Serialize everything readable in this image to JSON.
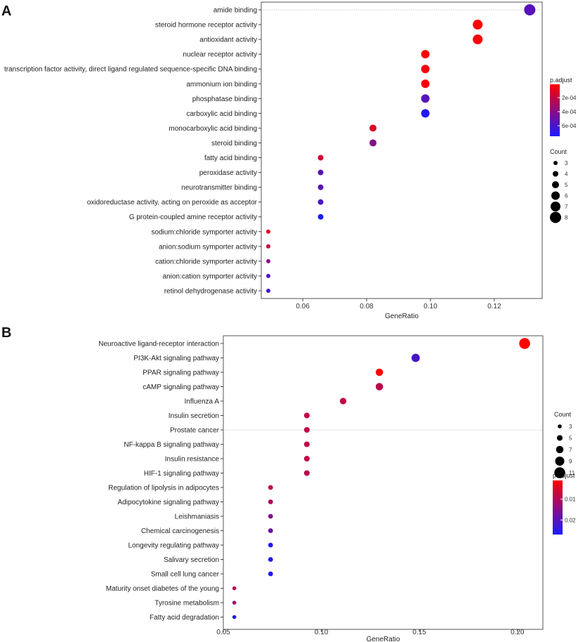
{
  "chart_data": [
    {
      "type": "scatter",
      "panel_label": "A",
      "xlabel": "GeneRatio",
      "xlim": [
        0.047,
        0.135
      ],
      "x_ticks": [
        0.06,
        0.08,
        0.1,
        0.12
      ],
      "x_tick_labels": [
        "0.06",
        "0.08",
        "0.10",
        "0.12"
      ],
      "categories": [
        "amide binding",
        "steroid hormone receptor activity",
        "antioxidant activity",
        "nuclear receptor activity",
        "transcription factor activity, direct ligand regulated sequence-specific DNA binding",
        "ammonium ion binding",
        "phosphatase binding",
        "carboxylic acid binding",
        "monocarboxylic acid binding",
        "steroid binding",
        "fatty acid binding",
        "peroxidase activity",
        "neurotransmitter binding",
        "oxidoreductase activity, acting on peroxide as acceptor",
        "G protein-coupled amine receptor activity",
        "sodium:chloride symporter activity",
        "anion:sodium symporter activity",
        "cation:chloride symporter activity",
        "anion:cation symporter activity",
        "retinol dehydrogenase activity"
      ],
      "points": [
        {
          "x": 0.1311,
          "count": 8,
          "p_adjust": 0.00055
        },
        {
          "x": 0.1148,
          "count": 7,
          "p_adjust": 2e-05
        },
        {
          "x": 0.1148,
          "count": 7,
          "p_adjust": 3e-05
        },
        {
          "x": 0.0984,
          "count": 6,
          "p_adjust": 3e-05
        },
        {
          "x": 0.0984,
          "count": 6,
          "p_adjust": 4e-05
        },
        {
          "x": 0.0984,
          "count": 6,
          "p_adjust": 4e-05
        },
        {
          "x": 0.0984,
          "count": 6,
          "p_adjust": 0.00055
        },
        {
          "x": 0.0984,
          "count": 6,
          "p_adjust": 0.00072
        },
        {
          "x": 0.082,
          "count": 5,
          "p_adjust": 0.00012
        },
        {
          "x": 0.082,
          "count": 5,
          "p_adjust": 0.0004
        },
        {
          "x": 0.0656,
          "count": 4,
          "p_adjust": 0.00015
        },
        {
          "x": 0.0656,
          "count": 4,
          "p_adjust": 0.00055
        },
        {
          "x": 0.0656,
          "count": 4,
          "p_adjust": 0.00055
        },
        {
          "x": 0.0656,
          "count": 4,
          "p_adjust": 0.0006
        },
        {
          "x": 0.0656,
          "count": 4,
          "p_adjust": 0.00075
        },
        {
          "x": 0.0492,
          "count": 3,
          "p_adjust": 0.00012
        },
        {
          "x": 0.0492,
          "count": 3,
          "p_adjust": 0.0002
        },
        {
          "x": 0.0492,
          "count": 3,
          "p_adjust": 0.0004
        },
        {
          "x": 0.0492,
          "count": 3,
          "p_adjust": 0.00058
        },
        {
          "x": 0.0492,
          "count": 3,
          "p_adjust": 0.0006
        }
      ],
      "color_legend": {
        "title": "p.adjust",
        "range": [
          1e-05,
          0.00075
        ],
        "ticks": [
          0.0002,
          0.0004,
          0.0006
        ],
        "tick_labels": [
          "2e-04",
          "4e-04",
          "6e-04"
        ],
        "low_color": "#ff0000",
        "high_color": "#1a1aff"
      },
      "size_legend": {
        "title": "Count",
        "values": [
          3,
          4,
          5,
          6,
          7,
          8
        ],
        "labels": [
          "3",
          "4",
          "5",
          "6",
          "7",
          "8"
        ]
      }
    },
    {
      "type": "scatter",
      "panel_label": "B",
      "xlabel": "GeneRatio",
      "xlim": [
        0.05,
        0.213
      ],
      "x_ticks": [
        0.05,
        0.1,
        0.15,
        0.2
      ],
      "x_tick_labels": [
        "0.05",
        "0.10",
        "0.15",
        "0.20"
      ],
      "categories": [
        "Neuroactive ligand-receptor interaction",
        "PI3K-Akt signaling pathway",
        "PPAR signaling pathway",
        "cAMP signaling pathway",
        "Influenza A",
        "Insulin secretion",
        "Prostate cancer",
        "NF-kappa B signaling pathway",
        "Insulin resistance",
        "HIF-1 signaling pathway",
        "Regulation of lipolysis in adipocytes",
        "Adipocytokine signaling pathway",
        "Leishmaniasis",
        "Chemical carcinogenesis",
        "Longevity regulating pathway",
        "Salivary secretion",
        "Small cell lung cancer",
        "Maturity onset diabetes of the young",
        "Tyrosine metabolism",
        "Fatty acid degradation"
      ],
      "points": [
        {
          "x": 0.2037,
          "count": 11,
          "p_adjust": 0.001
        },
        {
          "x": 0.1481,
          "count": 8,
          "p_adjust": 0.022
        },
        {
          "x": 0.1296,
          "count": 7,
          "p_adjust": 0.001
        },
        {
          "x": 0.1296,
          "count": 7,
          "p_adjust": 0.009
        },
        {
          "x": 0.1111,
          "count": 6,
          "p_adjust": 0.008
        },
        {
          "x": 0.0926,
          "count": 5,
          "p_adjust": 0.008
        },
        {
          "x": 0.0926,
          "count": 5,
          "p_adjust": 0.008
        },
        {
          "x": 0.0926,
          "count": 5,
          "p_adjust": 0.008
        },
        {
          "x": 0.0926,
          "count": 5,
          "p_adjust": 0.008
        },
        {
          "x": 0.0926,
          "count": 5,
          "p_adjust": 0.009
        },
        {
          "x": 0.0741,
          "count": 4,
          "p_adjust": 0.008
        },
        {
          "x": 0.0741,
          "count": 4,
          "p_adjust": 0.01
        },
        {
          "x": 0.0741,
          "count": 4,
          "p_adjust": 0.015
        },
        {
          "x": 0.0741,
          "count": 4,
          "p_adjust": 0.018
        },
        {
          "x": 0.0741,
          "count": 4,
          "p_adjust": 0.026
        },
        {
          "x": 0.0741,
          "count": 4,
          "p_adjust": 0.026
        },
        {
          "x": 0.0741,
          "count": 4,
          "p_adjust": 0.026
        },
        {
          "x": 0.0556,
          "count": 3,
          "p_adjust": 0.009
        },
        {
          "x": 0.0556,
          "count": 3,
          "p_adjust": 0.012
        },
        {
          "x": 0.0556,
          "count": 3,
          "p_adjust": 0.026
        }
      ],
      "color_legend": {
        "title": "p.adjust",
        "range": [
          0.001,
          0.027
        ],
        "ticks": [
          0.01,
          0.02
        ],
        "tick_labels": [
          "0.01",
          "0.02"
        ],
        "low_color": "#ff0000",
        "high_color": "#1a1aff"
      },
      "size_legend": {
        "title": "Count",
        "values": [
          3,
          5,
          7,
          9,
          11
        ],
        "labels": [
          "3",
          "5",
          "7",
          "9",
          "11"
        ]
      }
    }
  ]
}
